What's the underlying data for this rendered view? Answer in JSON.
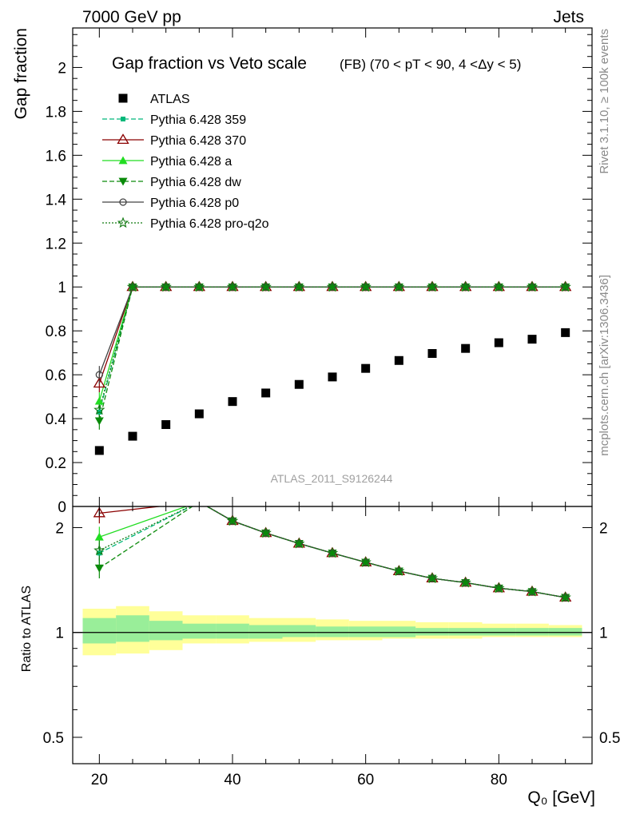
{
  "header": {
    "left": "7000 GeV pp",
    "right": "Jets"
  },
  "title": {
    "main": "Gap fraction vs Veto scale",
    "sub": "(FB)  (70 < pT <  90, 4 <Δy < 5)"
  },
  "side_labels": {
    "rivet": "Rivet 3.1.10, ≥ 100k events",
    "mcplots": "mcplots.cern.ch [arXiv:1306.3436]"
  },
  "watermark": "ATLAS_2011_S9126244",
  "axes": {
    "top_ylabel": "Gap fraction",
    "bottom_ylabel": "Ratio to ATLAS",
    "xlabel": "Q₀ [GeV]"
  },
  "colors": {
    "atlas": "#000000",
    "p359": "#00b87a",
    "p370": "#8b0000",
    "pa": "#22dd22",
    "pdw": "#0a8a0a",
    "pp0": "#444444",
    "pq2o": "#127a12",
    "band_yellow": "#ffff99",
    "band_green": "#99ee99"
  },
  "chart_data": [
    {
      "type": "scatter",
      "title": "Gap fraction vs Veto scale",
      "xlabel": "",
      "ylabel": "Gap fraction",
      "xlim": [
        16,
        94
      ],
      "ylim": [
        0,
        2.18
      ],
      "xticks": [
        20,
        40,
        60,
        80
      ],
      "yticks": [
        0.2,
        0.4,
        0.6,
        0.8,
        1,
        1.2,
        1.4,
        1.6,
        1.8,
        2
      ],
      "ytick_labels": [
        "0.2",
        "0.4",
        "0.6",
        "0.8",
        "1",
        "1.2",
        "1.4",
        "1.6",
        "1.8",
        "2"
      ],
      "legend_position": "top-left",
      "x": [
        20,
        25,
        30,
        35,
        40,
        45,
        50,
        55,
        60,
        65,
        70,
        75,
        80,
        85,
        90
      ],
      "series": [
        {
          "name": "ATLAS",
          "marker": "square",
          "line": "none",
          "colorKey": "atlas",
          "values": [
            0.255,
            0.32,
            0.373,
            0.422,
            0.478,
            0.517,
            0.556,
            0.59,
            0.629,
            0.665,
            0.697,
            0.72,
            0.746,
            0.762,
            0.792
          ]
        },
        {
          "name": "Pythia 6.428 359",
          "marker": "smallsquare",
          "line": "dashed",
          "colorKey": "p359",
          "values": [
            0.43,
            1,
            1,
            1,
            1,
            1,
            1,
            1,
            1,
            1,
            1,
            1,
            1,
            1,
            1
          ]
        },
        {
          "name": "Pythia 6.428 370",
          "marker": "opentriangle",
          "line": "solid",
          "colorKey": "p370",
          "values": [
            0.56,
            1,
            1,
            1,
            1,
            1,
            1,
            1,
            1,
            1,
            1,
            1,
            1,
            1,
            1
          ]
        },
        {
          "name": "Pythia 6.428 a",
          "marker": "triangle",
          "line": "solid",
          "colorKey": "pa",
          "values": [
            0.48,
            1,
            1,
            1,
            1,
            1,
            1,
            1,
            1,
            1,
            1,
            1,
            1,
            1,
            1
          ]
        },
        {
          "name": "Pythia 6.428 dw",
          "marker": "triangledown",
          "line": "dashed",
          "colorKey": "pdw",
          "values": [
            0.39,
            1,
            1,
            1,
            1,
            1,
            1,
            1,
            1,
            1,
            1,
            1,
            1,
            1,
            1
          ]
        },
        {
          "name": "Pythia 6.428 p0",
          "marker": "opencircle",
          "line": "solid",
          "colorKey": "pp0",
          "values": [
            0.6,
            1,
            1,
            1,
            1,
            1,
            1,
            1,
            1,
            1,
            1,
            1,
            1,
            1,
            1
          ]
        },
        {
          "name": "Pythia 6.428 pro-q2o",
          "marker": "star",
          "line": "dotted",
          "colorKey": "pq2o",
          "values": [
            0.44,
            1,
            1,
            1,
            1,
            1,
            1,
            1,
            1,
            1,
            1,
            1,
            1,
            1,
            1
          ]
        }
      ]
    },
    {
      "type": "line",
      "title": "",
      "xlabel": "Q₀ [GeV]",
      "ylabel": "Ratio to ATLAS",
      "xlim": [
        16,
        94
      ],
      "ylim": [
        0.42,
        2.3
      ],
      "yscale": "log",
      "xticks": [
        20,
        40,
        60,
        80
      ],
      "yticks": [
        0.5,
        1,
        2
      ],
      "ytick_labels": [
        "0.5",
        "1",
        "2"
      ],
      "x": [
        20,
        35,
        40,
        45,
        50,
        55,
        60,
        65,
        70,
        75,
        80,
        85,
        90
      ],
      "series": [
        {
          "name": "Pythia 6.428 359",
          "colorKey": "p359",
          "line": "dashed",
          "marker": "smallsquare",
          "values": [
            1.69,
            2.37,
            2.09,
            1.93,
            1.8,
            1.69,
            1.59,
            1.5,
            1.43,
            1.39,
            1.34,
            1.31,
            1.26
          ]
        },
        {
          "name": "Pythia 6.428 370",
          "colorKey": "p370",
          "line": "solid",
          "marker": "opentriangle",
          "values": [
            2.2,
            2.37,
            2.09,
            1.93,
            1.8,
            1.69,
            1.59,
            1.5,
            1.43,
            1.39,
            1.34,
            1.31,
            1.26
          ]
        },
        {
          "name": "Pythia 6.428 a",
          "colorKey": "pa",
          "line": "solid",
          "marker": "triangle",
          "values": [
            1.88,
            2.37,
            2.09,
            1.93,
            1.8,
            1.69,
            1.59,
            1.5,
            1.43,
            1.39,
            1.34,
            1.31,
            1.26
          ]
        },
        {
          "name": "Pythia 6.428 dw",
          "colorKey": "pdw",
          "line": "dashed",
          "marker": "triangledown",
          "values": [
            1.53,
            2.37,
            2.09,
            1.93,
            1.8,
            1.69,
            1.59,
            1.5,
            1.43,
            1.39,
            1.34,
            1.31,
            1.26
          ]
        },
        {
          "name": "Pythia 6.428 p0",
          "colorKey": "pp0",
          "line": "solid",
          "marker": "opencircle",
          "values": [
            2.35,
            2.37,
            2.09,
            1.93,
            1.8,
            1.69,
            1.59,
            1.5,
            1.43,
            1.39,
            1.34,
            1.31,
            1.26
          ]
        },
        {
          "name": "Pythia 6.428 pro-q2o",
          "colorKey": "pq2o",
          "line": "dotted",
          "marker": "star",
          "values": [
            1.72,
            2.37,
            2.09,
            1.93,
            1.8,
            1.69,
            1.59,
            1.5,
            1.43,
            1.39,
            1.34,
            1.31,
            1.26
          ]
        }
      ],
      "uncertainty_bands": {
        "bins": [
          [
            17.5,
            22.5
          ],
          [
            22.5,
            27.5
          ],
          [
            27.5,
            32.5
          ],
          [
            32.5,
            37.5
          ],
          [
            37.5,
            42.5
          ],
          [
            42.5,
            47.5
          ],
          [
            47.5,
            52.5
          ],
          [
            52.5,
            57.5
          ],
          [
            57.5,
            62.5
          ],
          [
            62.5,
            67.5
          ],
          [
            67.5,
            72.5
          ],
          [
            72.5,
            77.5
          ],
          [
            77.5,
            82.5
          ],
          [
            82.5,
            87.5
          ],
          [
            87.5,
            92.5
          ]
        ],
        "total_lo": [
          0.86,
          0.87,
          0.89,
          0.93,
          0.93,
          0.94,
          0.94,
          0.95,
          0.95,
          0.96,
          0.96,
          0.96,
          0.97,
          0.97,
          0.97
        ],
        "total_hi": [
          1.17,
          1.19,
          1.15,
          1.12,
          1.12,
          1.1,
          1.1,
          1.09,
          1.08,
          1.08,
          1.07,
          1.07,
          1.06,
          1.06,
          1.05
        ],
        "stat_lo": [
          0.93,
          0.94,
          0.95,
          0.96,
          0.96,
          0.96,
          0.97,
          0.97,
          0.97,
          0.97,
          0.98,
          0.98,
          0.98,
          0.98,
          0.98
        ],
        "stat_hi": [
          1.1,
          1.12,
          1.08,
          1.06,
          1.06,
          1.05,
          1.05,
          1.04,
          1.04,
          1.04,
          1.03,
          1.03,
          1.03,
          1.03,
          1.03
        ]
      }
    }
  ]
}
